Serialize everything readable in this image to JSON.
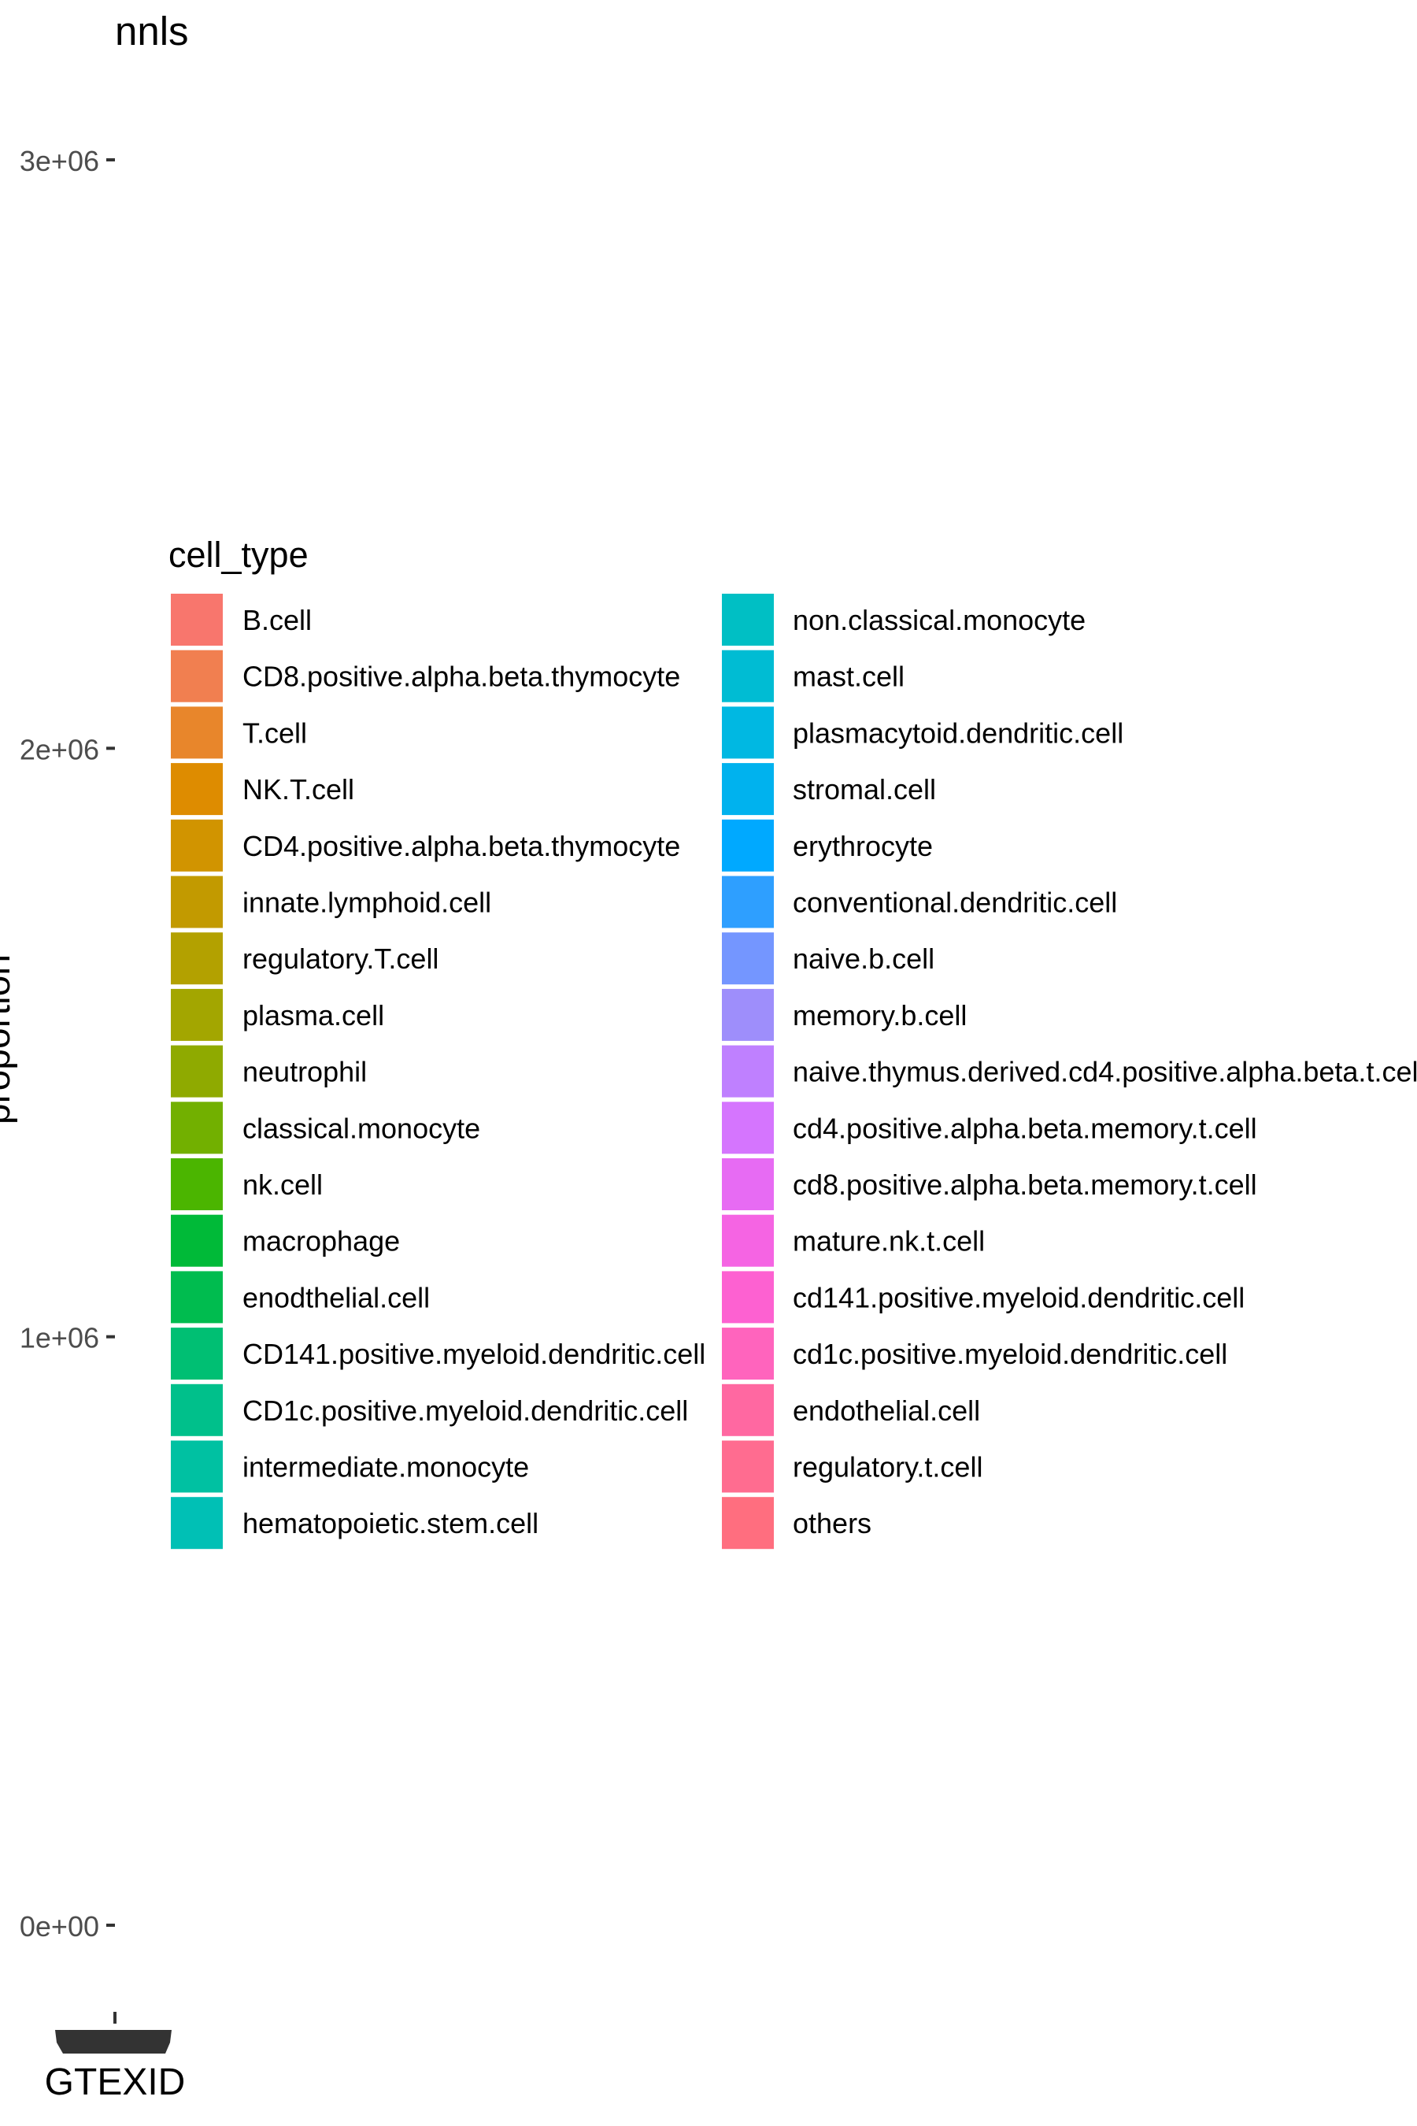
{
  "chart_data": {
    "type": "bar",
    "title": "nnls",
    "xlabel": "GTEXID",
    "ylabel": "proportion",
    "ylim": [
      0,
      3000000
    ],
    "yticks": [
      {
        "value": 0,
        "label": "0e+00"
      },
      {
        "value": 1000000,
        "label": "1e+06"
      },
      {
        "value": 2000000,
        "label": "2e+06"
      },
      {
        "value": 3000000,
        "label": "3e+06"
      }
    ],
    "grid": false,
    "legend": {
      "title": "cell_type",
      "placement": "inside-plot",
      "columns": 2,
      "items": [
        {
          "label": "B.cell",
          "color": "#F8766D"
        },
        {
          "label": "CD8.positive.alpha.beta.thymocyte",
          "color": "#F17F50"
        },
        {
          "label": "T.cell",
          "color": "#E8862B"
        },
        {
          "label": "NK.T.cell",
          "color": "#DE8C00"
        },
        {
          "label": "CD4.positive.alpha.beta.thymocyte",
          "color": "#D19400"
        },
        {
          "label": "innate.lymphoid.cell",
          "color": "#C29A00"
        },
        {
          "label": "regulatory.T.cell",
          "color": "#B3A100"
        },
        {
          "label": "plasma.cell",
          "color": "#A3A600"
        },
        {
          "label": "neutrophil",
          "color": "#8FAA00"
        },
        {
          "label": "classical.monocyte",
          "color": "#72B000"
        },
        {
          "label": "nk.cell",
          "color": "#4BB500"
        },
        {
          "label": "macrophage",
          "color": "#00BA38"
        },
        {
          "label": "enodthelial.cell",
          "color": "#00BC4F"
        },
        {
          "label": "CD141.positive.myeloid.dendritic.cell",
          "color": "#00BF73"
        },
        {
          "label": "CD1c.positive.myeloid.dendritic.cell",
          "color": "#00C08B"
        },
        {
          "label": "intermediate.monocyte",
          "color": "#00C1A2"
        },
        {
          "label": "hematopoietic.stem.cell",
          "color": "#00C0B5"
        },
        {
          "label": "non.classical.monocyte",
          "color": "#00BFC4"
        },
        {
          "label": "mast.cell",
          "color": "#00BCD3"
        },
        {
          "label": "plasmacytoid.dendritic.cell",
          "color": "#00B8E2"
        },
        {
          "label": "stromal.cell",
          "color": "#00B2EE"
        },
        {
          "label": "erythrocyte",
          "color": "#00A9FF"
        },
        {
          "label": "conventional.dendritic.cell",
          "color": "#2E9FFF"
        },
        {
          "label": "naive.b.cell",
          "color": "#7496FF"
        },
        {
          "label": "memory.b.cell",
          "color": "#9E8EFB"
        },
        {
          "label": "naive.thymus.derived.cd4.positive.alpha.beta.t.cel",
          "color": "#BF80FF"
        },
        {
          "label": "cd4.positive.alpha.beta.memory.t.cell",
          "color": "#D575FE"
        },
        {
          "label": "cd8.positive.alpha.beta.memory.t.cell",
          "color": "#E76BF3"
        },
        {
          "label": "mature.nk.t.cell",
          "color": "#F564E3"
        },
        {
          "label": "cd141.positive.myeloid.dendritic.cell",
          "color": "#FD61D1"
        },
        {
          "label": "cd1c.positive.myeloid.dendritic.cell",
          "color": "#FF64BD"
        },
        {
          "label": "endothelial.cell",
          "color": "#FF68A1"
        },
        {
          "label": "regulatory.t.cell",
          "color": "#FF6C90"
        },
        {
          "label": "others",
          "color": "#FF6E7F"
        }
      ]
    },
    "series": [],
    "x_axis_colors": {
      "axis_line": "#333333",
      "text": "#000000",
      "tick_text": "#4D4D4D"
    }
  }
}
